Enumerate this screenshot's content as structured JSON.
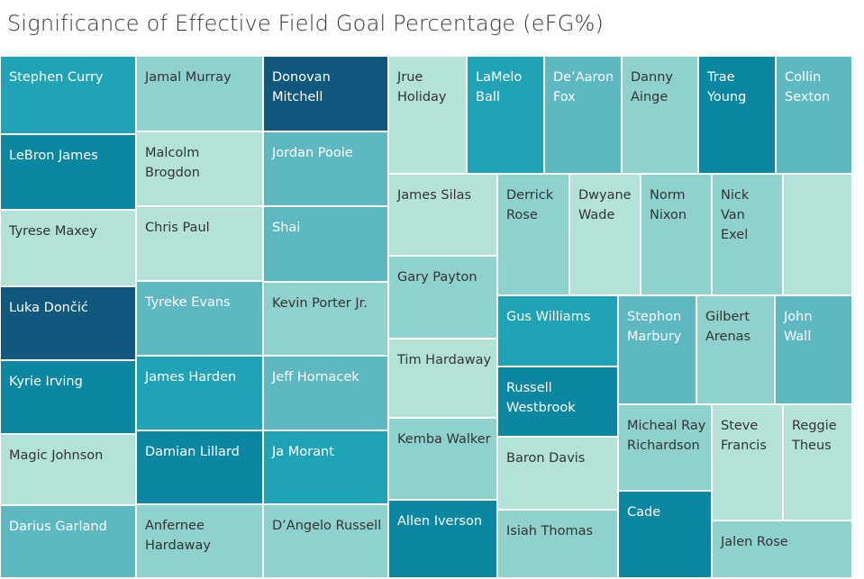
{
  "title": "Significance of Effective Field Goal Percentage (eFG%)",
  "chart_data": {
    "type": "treemap",
    "title": "Significance of Effective Field Goal Percentage (eFG%)",
    "color_scale": [
      "#b3e3d8",
      "#8ed1cd",
      "#5db8c2",
      "#20a3b6",
      "#0b87a1",
      "#11587f"
    ],
    "tiles": [
      {
        "label": "Stephen Curry",
        "shade": 3
      },
      {
        "label": "LeBron James",
        "shade": 4
      },
      {
        "label": "Tyrese Maxey",
        "shade": 0
      },
      {
        "label": "Luka Dončić",
        "shade": 5
      },
      {
        "label": "Kyrie Irving",
        "shade": 4
      },
      {
        "label": "Magic Johnson",
        "shade": 0
      },
      {
        "label": "Darius Garland",
        "shade": 2
      },
      {
        "label": "Jamal Murray",
        "shade": 1
      },
      {
        "label": "Malcolm\nBrogdon",
        "shade": 0
      },
      {
        "label": "Chris Paul",
        "shade": 0
      },
      {
        "label": "Tyreke Evans",
        "shade": 2
      },
      {
        "label": "James Harden",
        "shade": 3
      },
      {
        "label": "Damian Lillard",
        "shade": 4
      },
      {
        "label": "Anfernee\nHardaway",
        "shade": 1
      },
      {
        "label": "Donovan\nMitchell",
        "shade": 5
      },
      {
        "label": "Jordan Poole",
        "shade": 2
      },
      {
        "label": "Shai",
        "shade": 2
      },
      {
        "label": "Kevin Porter Jr.",
        "shade": 1
      },
      {
        "label": "Jeff Hornacek",
        "shade": 2
      },
      {
        "label": "Ja Morant",
        "shade": 3
      },
      {
        "label": "D’Angelo Russell",
        "shade": 1
      },
      {
        "label": "Jrue\nHoliday",
        "shade": 0
      },
      {
        "label": "LaMelo\nBall",
        "shade": 3
      },
      {
        "label": "De’Aaron\nFox",
        "shade": 2
      },
      {
        "label": "Danny\nAinge",
        "shade": 1
      },
      {
        "label": "Trae\nYoung",
        "shade": 4
      },
      {
        "label": "Collin\nSexton",
        "shade": 2
      },
      {
        "label": "James Silas",
        "shade": 0
      },
      {
        "label": "Derrick\nRose",
        "shade": 1
      },
      {
        "label": "Dwyane\nWade",
        "shade": 0
      },
      {
        "label": "Norm\nNixon",
        "shade": 1
      },
      {
        "label": "Nick\nVan\nExel",
        "shade": 1
      },
      {
        "label": "",
        "shade": 0
      },
      {
        "label": "Gary Payton",
        "shade": 1
      },
      {
        "label": "Tim Hardaway",
        "shade": 0
      },
      {
        "label": "Kemba Walker",
        "shade": 1
      },
      {
        "label": "Allen Iverson",
        "shade": 4
      },
      {
        "label": "Gus Williams",
        "shade": 3
      },
      {
        "label": "Russell\nWestbrook",
        "shade": 4
      },
      {
        "label": "Baron Davis",
        "shade": 0
      },
      {
        "label": "Isiah Thomas",
        "shade": 1
      },
      {
        "label": "Stephon\nMarbury",
        "shade": 2
      },
      {
        "label": "Gilbert\nArenas",
        "shade": 1
      },
      {
        "label": "John\nWall",
        "shade": 2
      },
      {
        "label": "Micheal Ray\nRichardson",
        "shade": 1
      },
      {
        "label": "Steve\nFrancis",
        "shade": 0
      },
      {
        "label": "Reggie\nTheus",
        "shade": 0
      },
      {
        "label": "Cade",
        "shade": 4
      },
      {
        "label": "Jalen Rose",
        "shade": 1
      }
    ]
  }
}
